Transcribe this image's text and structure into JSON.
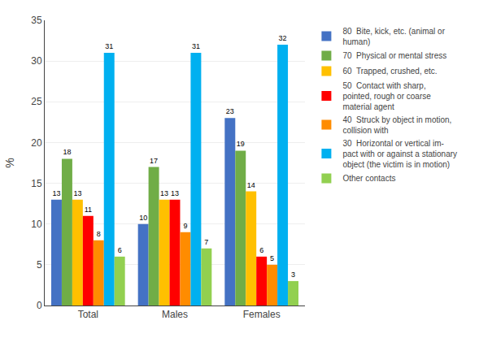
{
  "chart_data": {
    "type": "bar",
    "categories": [
      "Total",
      "Males",
      "Females"
    ],
    "series": [
      {
        "name": "80  Bite, kick, etc. (animal or\nhuman)",
        "color": "#4472C4",
        "values": [
          13,
          10,
          23
        ]
      },
      {
        "name": "70  Physical or mental stress",
        "color": "#70AD47",
        "values": [
          18,
          17,
          19
        ]
      },
      {
        "name": "60  Trapped, crushed, etc.",
        "color": "#FFC000",
        "values": [
          13,
          13,
          14
        ]
      },
      {
        "name": "50  Contact with sharp,\npointed, rough or coarse\nmaterial agent",
        "color": "#FF0000",
        "values": [
          11,
          13,
          6
        ]
      },
      {
        "name": "40  Struck by object in motion,\ncollision with",
        "color": "#FF8C00",
        "values": [
          8,
          9,
          5
        ]
      },
      {
        "name": "30  Horizontal or vertical im-\npact with or against a stationary\nobject (the victim is in motion)",
        "color": "#00B0F0",
        "values": [
          31,
          31,
          32
        ]
      },
      {
        "name": "Other contacts",
        "color": "#92D050",
        "values": [
          6,
          7,
          3
        ]
      }
    ],
    "ylabel": "%",
    "ylim": [
      0,
      35
    ],
    "yticks": [
      0,
      5,
      10,
      15,
      20,
      25,
      30,
      35
    ],
    "grid": true,
    "data_labels": true,
    "legend": "right"
  }
}
